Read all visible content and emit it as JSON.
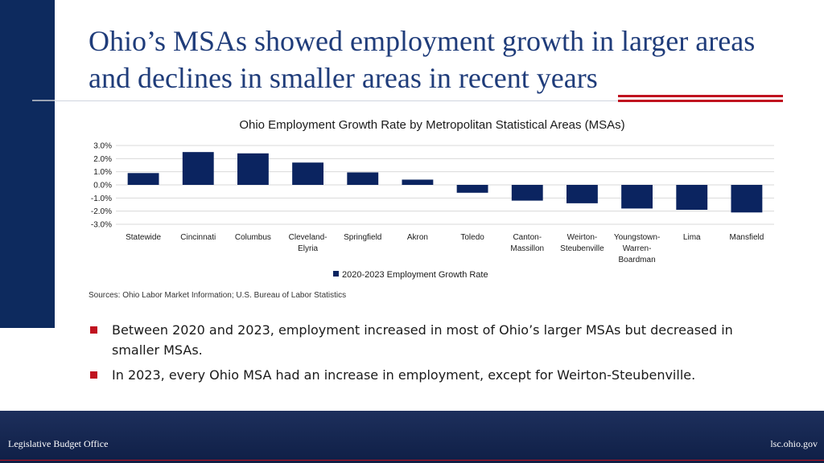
{
  "slide": {
    "title": "Ohio’s MSAs showed employment growth in larger areas and declines in smaller areas in recent years",
    "sources": "Sources: Ohio Labor Market Information; U.S. Bureau of Labor Statistics",
    "bullets": [
      "Between 2020 and 2023, employment increased in most of Ohio’s larger MSAs but decreased in smaller MSAs.",
      "In 2023, every Ohio MSA had an increase in employment, except for Weirton-Steubenville."
    ]
  },
  "footer": {
    "left": "Legislative Budget Office",
    "right": "lsc.ohio.gov"
  },
  "colors": {
    "bar": "#0b2460",
    "accent_red": "#c0121f",
    "navy": "#0d2a5e"
  },
  "chart_data": {
    "type": "bar",
    "title": "Ohio Employment Growth Rate by Metropolitan Statistical Areas (MSAs)",
    "categories": [
      "Statewide",
      "Cincinnati",
      "Columbus",
      "Cleveland-Elyria",
      "Springfield",
      "Akron",
      "Toledo",
      "Canton-Massillon",
      "Weirton-Steubenville",
      "Youngstown-Warren-Boardman",
      "Lima",
      "Mansfield"
    ],
    "category_lines": [
      [
        "Statewide"
      ],
      [
        "Cincinnati"
      ],
      [
        "Columbus"
      ],
      [
        "Cleveland-",
        "Elyria"
      ],
      [
        "Springfield"
      ],
      [
        "Akron"
      ],
      [
        "Toledo"
      ],
      [
        "Canton-",
        "Massillon"
      ],
      [
        "Weirton-",
        "Steubenville"
      ],
      [
        "Youngstown-",
        "Warren-",
        "Boardman"
      ],
      [
        "Lima"
      ],
      [
        "Mansfield"
      ]
    ],
    "series": [
      {
        "name": "2020-2023 Employment Growth Rate",
        "values": [
          0.9,
          2.5,
          2.4,
          1.7,
          0.95,
          0.4,
          -0.6,
          -1.2,
          -1.4,
          -1.8,
          -1.9,
          -2.1
        ]
      }
    ],
    "ylim": [
      -3.0,
      3.0
    ],
    "yticks": [
      "3.0%",
      "2.0%",
      "1.0%",
      "0.0%",
      "-1.0%",
      "-2.0%",
      "-3.0%"
    ],
    "ytick_values": [
      3,
      2,
      1,
      0,
      -1,
      -2,
      -3
    ],
    "grid": true,
    "legend_position": "bottom"
  }
}
